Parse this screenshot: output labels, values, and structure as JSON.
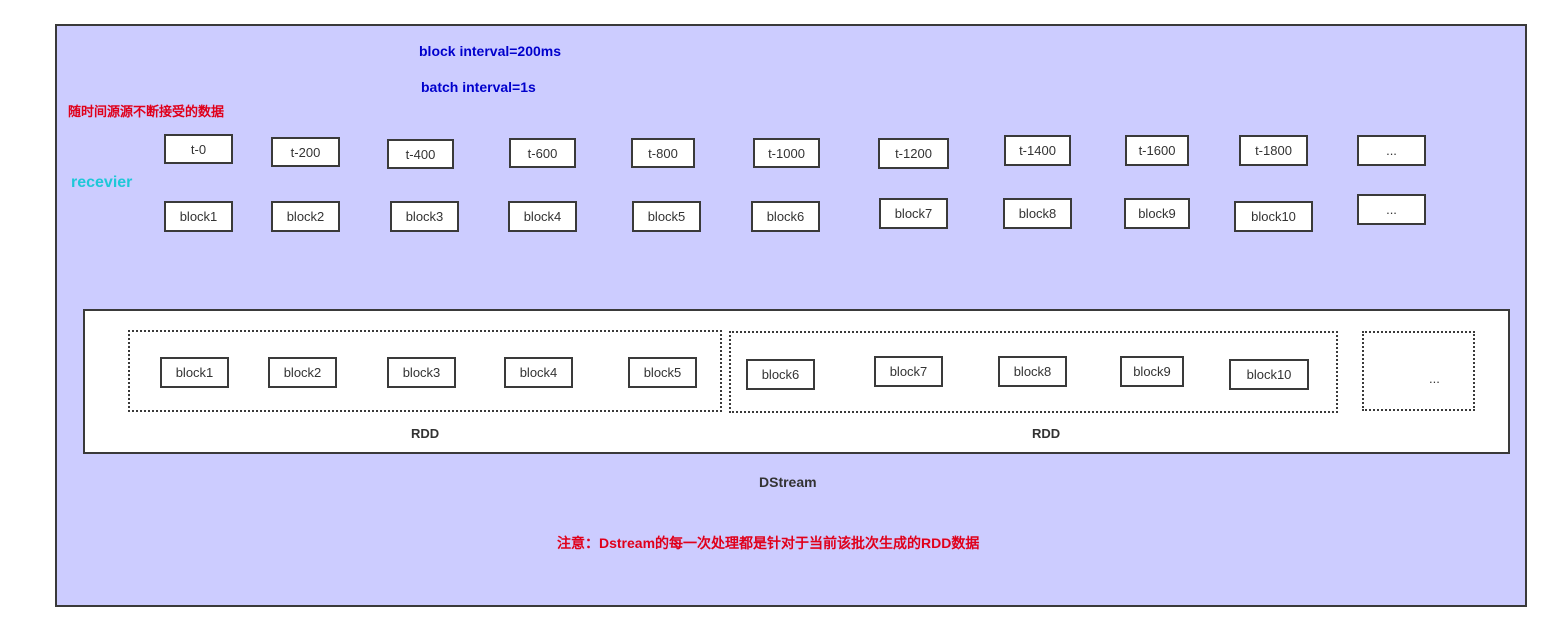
{
  "header": {
    "block_interval": "block interval=200ms",
    "batch_interval": "batch interval=1s",
    "continuous_data_label": "随时间源源不断接受的数据",
    "receiver_label": "recevier"
  },
  "timestamps": [
    "t-0",
    "t-200",
    "t-400",
    "t-600",
    "t-800",
    "t-1000",
    "t-1200",
    "t-1400",
    "t-1600",
    "t-1800",
    "..."
  ],
  "blocks": [
    "block1",
    "block2",
    "block3",
    "block4",
    "block5",
    "block6",
    "block7",
    "block8",
    "block9",
    "block10",
    "..."
  ],
  "rdd1": {
    "blocks": [
      "block1",
      "block2",
      "block3",
      "block4",
      "block5"
    ],
    "label": "RDD"
  },
  "rdd2": {
    "blocks": [
      "block6",
      "block7",
      "block8",
      "block9",
      "block10"
    ],
    "label": "RDD"
  },
  "rdd3": {
    "label": "..."
  },
  "dstream_label": "DStream",
  "note": "注意：Dstream的每一次处理都是针对于当前该批次生成的RDD数据",
  "colors": {
    "background": "#ccccff",
    "title": "#0000cc",
    "note": "#e0001b",
    "receiver": "#1ec8d8"
  }
}
